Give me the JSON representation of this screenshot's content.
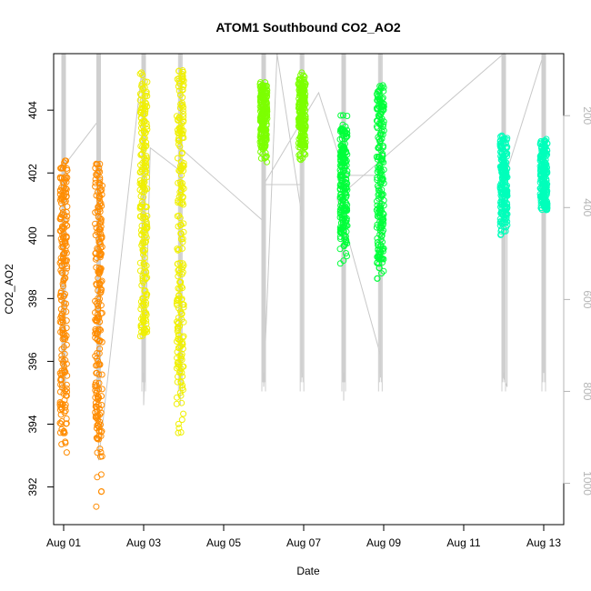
{
  "chart_data": {
    "type": "scatter",
    "title": "ATOM1 Southbound CO2_AO2",
    "xlabel": "Date",
    "ylabel": "CO2_AO2",
    "xlim": [
      "2016-07-31T18:00",
      "2016-08-13T12:00"
    ],
    "ylim": [
      390.8,
      405.8
    ],
    "x_ticks": [
      "Aug 01",
      "Aug 03",
      "Aug 05",
      "Aug 07",
      "Aug 09",
      "Aug 11",
      "Aug 13"
    ],
    "x_tick_dates": [
      "2016-08-01",
      "2016-08-03",
      "2016-08-05",
      "2016-08-07",
      "2016-08-09",
      "2016-08-11",
      "2016-08-13"
    ],
    "y_ticks": [
      392,
      394,
      396,
      398,
      400,
      402,
      404
    ],
    "right_axis": {
      "description": "secondary reversed axis for grey overlay trace",
      "ticks": [
        200,
        400,
        600,
        800,
        1000
      ],
      "range": [
        65,
        1090
      ],
      "reversed": true,
      "color": "#b5b5b5"
    },
    "grid": false,
    "legend": "none",
    "series": [
      {
        "color": "#ff8c00",
        "clusters": [
          {
            "t": "2016-08-01T00:00",
            "ymin": 393.1,
            "ymax": 402.4,
            "dense_min": 394.0,
            "dense_max": 402.2
          },
          {
            "t": "2016-08-01T21:00",
            "ymin": 391.3,
            "ymax": 402.3,
            "dense_min": 393.5,
            "dense_max": 402.2
          }
        ]
      },
      {
        "color": "#f0f000",
        "clusters": [
          {
            "t": "2016-08-03T00:00",
            "ymin": 396.8,
            "ymax": 405.2,
            "dense_min": 397.0,
            "dense_max": 404.9
          },
          {
            "t": "2016-08-03T22:00",
            "ymin": 393.7,
            "ymax": 405.3,
            "dense_min": 395.0,
            "dense_max": 405.2
          }
        ]
      },
      {
        "color": "#7cff00",
        "clusters": [
          {
            "t": "2016-08-06T00:00",
            "ymin": 402.3,
            "ymax": 404.9,
            "dense_min": 402.8,
            "dense_max": 404.8
          },
          {
            "t": "2016-08-06T23:00",
            "ymin": 402.4,
            "ymax": 405.2,
            "dense_min": 402.8,
            "dense_max": 405.0
          }
        ]
      },
      {
        "color": "#00ff3a",
        "clusters": [
          {
            "t": "2016-08-08T00:00",
            "ymin": 399.1,
            "ymax": 403.9,
            "dense_min": 399.8,
            "dense_max": 403.5
          },
          {
            "t": "2016-08-08T22:00",
            "ymin": 398.6,
            "ymax": 404.8,
            "dense_min": 399.2,
            "dense_max": 404.7
          }
        ]
      },
      {
        "color": "#00ffbb",
        "clusters": [
          {
            "t": "2016-08-12T00:00",
            "ymin": 400.0,
            "ymax": 403.2,
            "dense_min": 400.4,
            "dense_max": 403.1
          },
          {
            "t": "2016-08-13T00:00",
            "ymin": 400.8,
            "ymax": 403.1,
            "dense_min": 400.9,
            "dense_max": 403.0
          }
        ]
      }
    ],
    "overlay_trace": {
      "color": "#c8c8c8",
      "points": [
        [
          "2016-08-01T00:00",
          310
        ],
        [
          "2016-08-01T00:00",
          800
        ],
        [
          "2016-08-01T00:00",
          310
        ],
        [
          "2016-08-01T21:00",
          210
        ],
        [
          "2016-08-01T21:00",
          65
        ],
        [
          "2016-08-01T21:00",
          950
        ],
        [
          "2016-08-03T00:00",
          65
        ],
        [
          "2016-08-03T00:00",
          830
        ],
        [
          "2016-08-03T04:00",
          270
        ],
        [
          "2016-08-03T22:00",
          320
        ],
        [
          "2016-08-03T22:00",
          65
        ],
        [
          "2016-08-03T22:00",
          830
        ],
        [
          "2016-08-03T22:00",
          270
        ],
        [
          "2016-08-06T00:00",
          430
        ],
        [
          "2016-08-06T00:00",
          65
        ],
        [
          "2016-08-06T00:00",
          790
        ],
        [
          "2016-08-06T08:00",
          65
        ],
        [
          "2016-08-06T23:00",
          420
        ],
        [
          "2016-08-06T23:00",
          65
        ],
        [
          "2016-08-06T23:00",
          770
        ],
        [
          "2016-08-06T23:00",
          350
        ],
        [
          "2016-08-06T00:00",
          350
        ],
        [
          "2016-08-07T09:00",
          150
        ],
        [
          "2016-08-08T00:00",
          320
        ],
        [
          "2016-08-08T00:00",
          65
        ],
        [
          "2016-08-08T00:00",
          820
        ],
        [
          "2016-08-08T00:00",
          330
        ],
        [
          "2016-08-08T22:00",
          330
        ],
        [
          "2016-08-08T22:00",
          65
        ],
        [
          "2016-08-08T22:00",
          770
        ],
        [
          "2016-08-08T22:00",
          720
        ],
        [
          "2016-08-07T20:00",
          380
        ],
        [
          "2016-08-12T00:00",
          65
        ],
        [
          "2016-08-12T00:00",
          770
        ],
        [
          "2016-08-12T02:00",
          790
        ],
        [
          "2016-08-12T02:00",
          320
        ],
        [
          "2016-08-13T00:00",
          65
        ],
        [
          "2016-08-13T00:00",
          740
        ],
        [
          "2016-08-13T00:00",
          350
        ]
      ]
    }
  }
}
